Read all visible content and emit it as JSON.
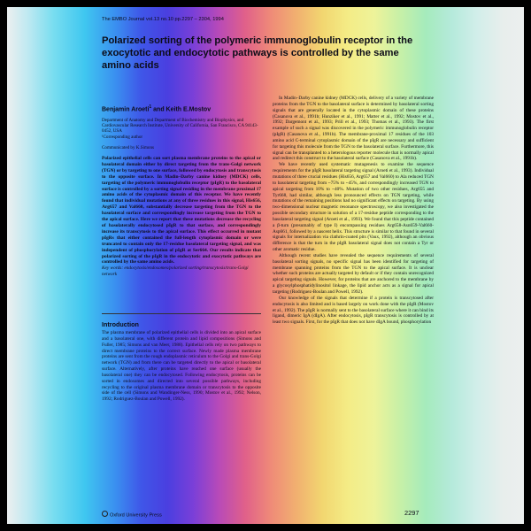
{
  "header": {
    "journal_line": "The EMBO Journal vol.13 no.10 pp.2297 – 2304, 1994"
  },
  "article": {
    "title": "Polarized sorting of the polymeric immunoglobulin receptor in the exocytotic and endocytotic pathways is controlled by the same amino acids",
    "authors": {
      "first": "Benjamin Aroeti",
      "first_mark": "1",
      "joiner": " and ",
      "second": "Keith E.Mostov"
    },
    "affiliation": "Department of Anatomy and Department of Biochemistry and Biophysics, and Cardiovascular Research Institute, University of California, San Francisco, CA 94143-0452, USA",
    "corresponding": "¹Corresponding author",
    "communicated": "Communicated by K.Simons",
    "abstract": "Polarized epithelial cells can sort plasma membrane proteins to the apical or basolateral domain either by direct targeting from the trans-Golgi network (TGN) or by targeting to one surface, followed by endocytosis and transcytosis to the opposite surface. In Madin–Darby canine kidney (MDCK) cells, targeting of the polymeric immunoglobulin receptor (pIgR) to the basolateral surface is controlled by a sorting signal residing in the membrane proximal 17 amino acids of the cytoplasmic domain of this receptor. We have recently found that individual mutations at any of three residues in this signal, His656, Arg657 and Val660, substantially decrease targeting from the TGN to the basolateral surface and correspondingly increase targeting from the TGN to the apical surface. Here we report that these mutations decrease the recycling of basolaterally endocytosed pIgR to that surface, and correspondingly increase its transcytosis to the apical surface. This effect occurred in mutant pIgRs that either contained the full-length cytoplasmic domain or were truncated to contain only the 17-residue basolateral targeting signal, and was independent of phosphorylation of pIgR at Ser664. Our results indicate that polarized sorting of the pIgR in the endocytotic and exocytotic pathways are controlled by the same amino acids.",
    "keywords": "Key words: endocytosis/endosomes/polarized sorting/transcytosis/trans-Golgi network"
  },
  "introduction": {
    "heading": "Introduction",
    "paragraphs": [
      "The plasma membrane of polarized epithelial cells is divided into an apical surface and a basolateral one, with different protein and lipid compositions (Simons and Fuller, 1985; Simons and van Meer, 1988). Epithelial cells rely on two pathways to direct membrane proteins to the correct surface. Newly made plasma membrane proteins are sent from the rough endoplasmic reticulum to the Golgi and trans-Golgi network (TGN) and from there can be targeted directly to the apical or basolateral surface. Alternatively, after proteins have reached one surface (usually the basolateral one) they can be endocytosed. Following endocytosis, proteins can be sorted in endosomes and directed into several possible pathways, including recycling to the original plasma membrane domain or transcytosis to the opposite side of the cell (Simons and Wandinger-Ness, 1990; Mostov et al., 1992; Nelson, 1992; Rodriguez-Boulan and Powell, 1992)."
    ]
  },
  "right_column": {
    "paragraphs": [
      "In Madin–Darby canine kidney (MDCK) cells, delivery of a variety of membrane proteins from the TGN to the basolateral surface is determined by basolateral sorting signals that are generally located in the cytoplasmic domain of these proteins (Casanova et al., 1991b; Hunziker et al., 1991; Matter et al., 1992; Mostov et al., 1992; Dargemont et al., 1993; Prill et al., 1993; Thomas et al., 1993). The first example of such a signal was discovered in the polymeric immunoglobulin receptor (pIgR) (Casanova et al., 1991b). The membrane-proximal 17 residues of the 103 amino acid C-terminal cytoplasmic domain of the pIgR are necessary and sufficient for targeting this molecule from the TGN to the basolateral surface. Furthermore, this signal can be transplanted to a heterologous reporter molecule that is normally apical and redirect this construct to the basolateral surface (Casanova et al., 1991b).",
      "We have recently used systematic mutagenesis to examine the sequence requirements for the pIgR basolateral targeting signal (Aroeti et al., 1993). Individual mutations of three crucial residues (His656, Arg657 and Val660) to Ala reduced TGN to basolateral targeting from ~75% to ~45%, and correspondingly increased TGN to apical targeting from 10% to ~40%. Mutation of two other residues, Arg655 and Tyr668, had similar, although less pronounced effects on TGN targeting, while mutations of the remaining positions had no significant effects on targeting. By using two-dimensional nuclear magnetic resonance spectroscopy, we also investigated the possible secondary structure in solution of a 17-residue peptide corresponding to the basolateral targeting signal (Aroeti et al., 1993). We found that this peptide contained a β-turn (presumably of type I) encompassing residues Arg658-Asn659-Val660-Asp661, followed by a nascent helix. This structure is similar to that found in several signals for internalization via clathrin-coated pits (Vaux, 1992), although an obvious difference is that the turn in the pIgR basolateral signal does not contain a Tyr or other aromatic residue.",
      "Although recent studies have revealed the sequence requirements of several basolateral sorting signals, no specific signal has been identified for targeting of membrane spanning proteins from the TGN to the apical surface. It is unclear whether such proteins are actually targeted by default or if they contain unrecognized apical targeting signals. However, for proteins that are anchored to the membrane by a glycosylphosphatidylinositol linkage, the lipid anchor acts as a signal for apical targeting (Rodriguez-Boulan and Powell, 1992).",
      "Our knowledge of the signals that determine if a protein is transcytosed after endocytosis is also limited and is based largely on work done with the pIgR (Mostov et al., 1992). The pIgR is normally sent to the basolateral surface where it can bind its ligand, dimeric IgA (dIgA). After endocytosis, pIgR transcytosis is controlled by at least two signals. First, for the pIgR that does not have dIgA bound, phosphorylation"
    ]
  },
  "footer": {
    "publisher": "Oxford University Press",
    "page_number": "2297"
  }
}
